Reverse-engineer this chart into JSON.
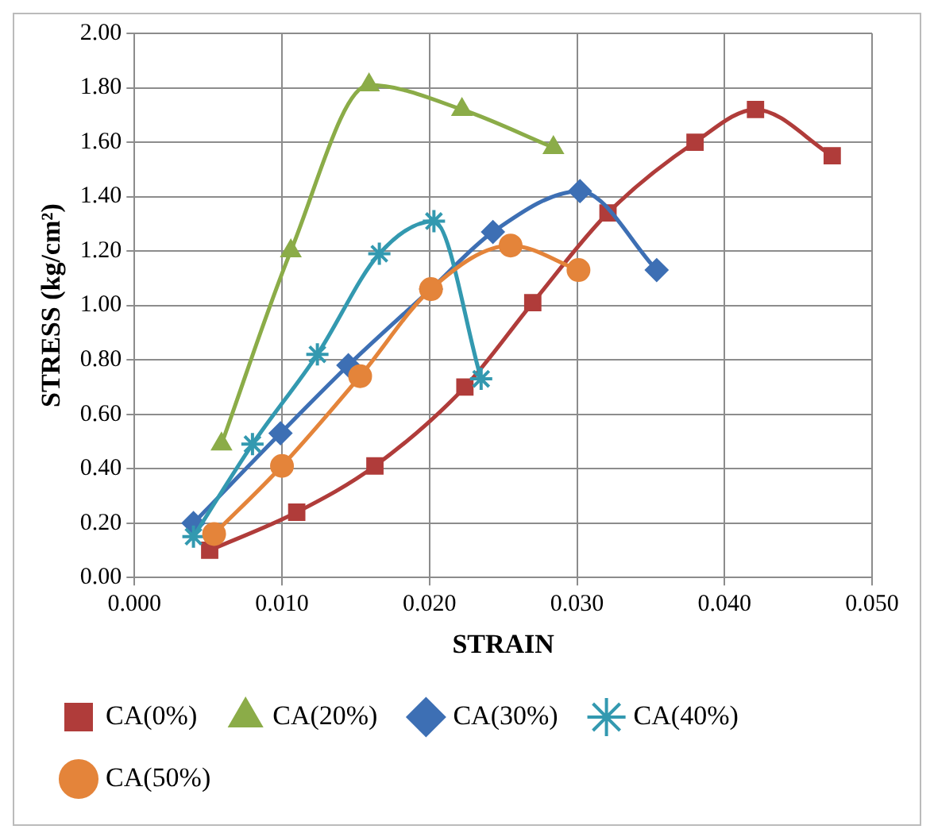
{
  "chart_data": {
    "type": "line",
    "xlabel": "STRAIN",
    "ylabel": "STRESS (kg/cm²)",
    "xlim": [
      0,
      0.05
    ],
    "xticks": [
      {
        "value": 0,
        "label": "0.000"
      },
      {
        "value": 0.01,
        "label": "0.010"
      },
      {
        "value": 0.02,
        "label": "0.020"
      },
      {
        "value": 0.03,
        "label": "0.030"
      },
      {
        "value": 0.04,
        "label": "0.040"
      },
      {
        "value": 0.05,
        "label": "0.050"
      }
    ],
    "ylim": [
      0,
      2
    ],
    "yticks": [
      {
        "value": 0,
        "label": "0.00"
      },
      {
        "value": 0.2,
        "label": "0.20"
      },
      {
        "value": 0.4,
        "label": "0.40"
      },
      {
        "value": 0.6,
        "label": "0.60"
      },
      {
        "value": 0.8,
        "label": "0.80"
      },
      {
        "value": 1,
        "label": "1.00"
      },
      {
        "value": 1.2,
        "label": "1.20"
      },
      {
        "value": 1.4,
        "label": "1.40"
      },
      {
        "value": 1.6,
        "label": "1.60"
      },
      {
        "value": 1.8,
        "label": "1.80"
      },
      {
        "value": 2,
        "label": "2.00"
      }
    ],
    "grid": true,
    "legend": "bottom",
    "line_style": "solid",
    "series": [
      {
        "name": "CA(0%)",
        "color": "#b03c3a",
        "marker": "square",
        "x": [
          0.0051,
          0.011,
          0.0163,
          0.0224,
          0.027,
          0.0321,
          0.038,
          0.0421,
          0.0473
        ],
        "values": [
          0.1,
          0.24,
          0.41,
          0.7,
          1.01,
          1.34,
          1.6,
          1.72,
          1.55
        ]
      },
      {
        "name": "CA(20%)",
        "color": "#8bac48",
        "marker": "triangle",
        "x": [
          0.0059,
          0.0106,
          0.0159,
          0.0222,
          0.0284
        ],
        "values": [
          0.49,
          1.2,
          1.81,
          1.72,
          1.58
        ]
      },
      {
        "name": "CA(30%)",
        "color": "#3d6fb4",
        "marker": "diamond",
        "x": [
          0.004,
          0.0099,
          0.0145,
          0.0201,
          0.0243,
          0.0302,
          0.0354
        ],
        "values": [
          0.2,
          0.53,
          0.78,
          1.06,
          1.27,
          1.42,
          1.13
        ]
      },
      {
        "name": "CA(40%)",
        "color": "#3399b0",
        "marker": "cross",
        "x": [
          0.004,
          0.008,
          0.0124,
          0.0166,
          0.0203,
          0.0235
        ],
        "values": [
          0.15,
          0.49,
          0.82,
          1.19,
          1.31,
          0.73
        ]
      },
      {
        "name": "CA(50%)",
        "color": "#e4843a",
        "marker": "circle",
        "x": [
          0.0054,
          0.01,
          0.0153,
          0.0201,
          0.0255,
          0.0301
        ],
        "values": [
          0.16,
          0.41,
          0.74,
          1.06,
          1.22,
          1.13
        ]
      }
    ]
  }
}
